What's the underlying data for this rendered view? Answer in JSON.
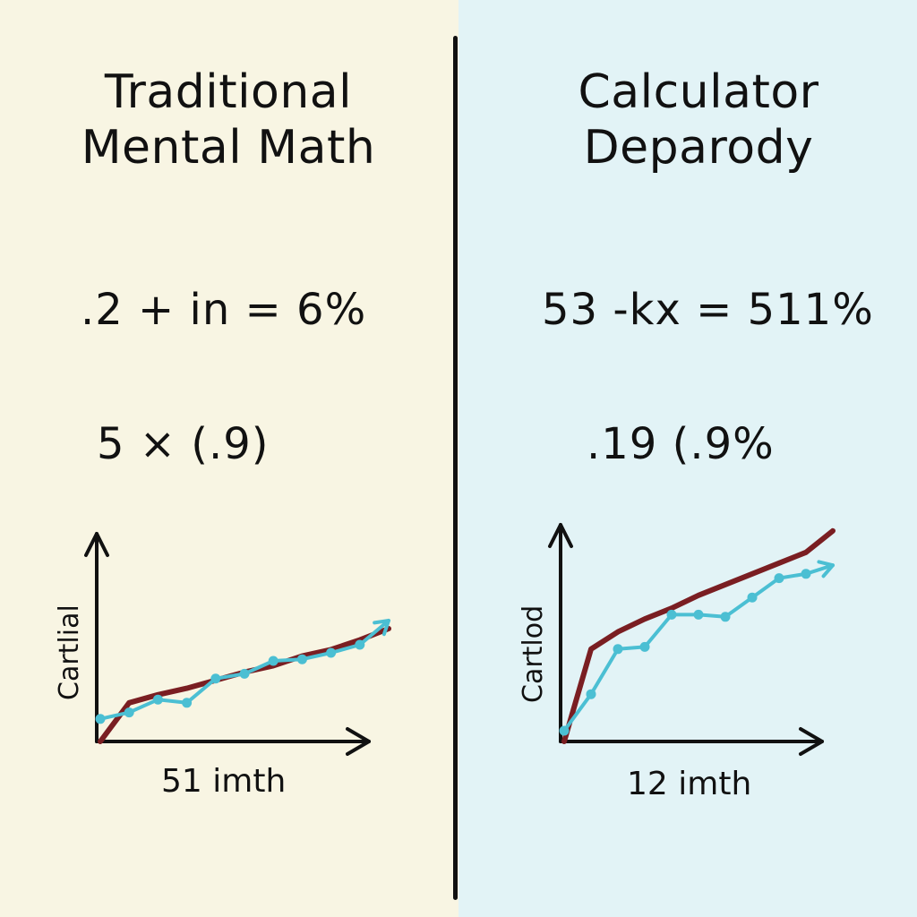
{
  "left": {
    "title_lines": [
      "Traditional",
      "Mental Math"
    ],
    "equation_1": ".2 + in = 6%",
    "equation_2": "5 × (.9)",
    "graph": {
      "ylabel": "Cartlial",
      "xlabel": "51 imth"
    }
  },
  "right": {
    "title_lines": [
      "Calculator",
      "Deparody"
    ],
    "equation_1": "53 -kx = 511%",
    "equation_2": ".19 (.9%",
    "graph": {
      "ylabel": "Cartlod",
      "xlabel": "12 imth"
    }
  },
  "colors": {
    "left_bg": "#f8f5e3",
    "right_bg": "#e2f3f6",
    "red_line": "#7a1e22",
    "blue_line": "#4bbfd3",
    "ink": "#111111"
  },
  "chart_data": [
    {
      "type": "line",
      "xlabel": "51 imth",
      "ylabel": "Cartlial",
      "series": [
        {
          "x": [
            0,
            1,
            2,
            3,
            4,
            5,
            6,
            7,
            8,
            9,
            10
          ],
          "values": [
            0,
            2.4,
            2.9,
            3.3,
            3.8,
            4.3,
            4.7,
            5.3,
            5.7,
            6.3,
            7.0
          ]
        },
        {
          "x": [
            0,
            1,
            2,
            3,
            4,
            5,
            6,
            7,
            8,
            9,
            10
          ],
          "values": [
            1.4,
            1.8,
            2.6,
            2.4,
            3.9,
            4.2,
            5.0,
            5.1,
            5.5,
            6.0,
            7.5
          ]
        }
      ]
    },
    {
      "type": "line",
      "xlabel": "12 imth",
      "ylabel": "Cartlod",
      "series": [
        {
          "x": [
            0,
            1,
            2,
            3,
            4,
            5,
            6,
            7,
            8,
            9,
            10
          ],
          "values": [
            0,
            4.3,
            5.1,
            5.7,
            6.2,
            6.8,
            7.3,
            7.8,
            8.3,
            8.8,
            9.8
          ]
        },
        {
          "x": [
            0,
            1,
            2,
            3,
            4,
            5,
            6,
            7,
            8,
            9,
            10
          ],
          "values": [
            0.5,
            2.2,
            4.3,
            4.4,
            5.9,
            5.9,
            5.8,
            6.7,
            7.6,
            7.8,
            8.2
          ]
        }
      ]
    }
  ]
}
